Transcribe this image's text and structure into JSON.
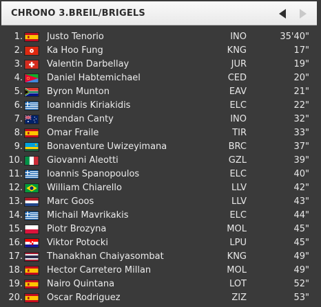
{
  "header": {
    "title": "CHRONO 3.BREIL/BRIGELS"
  },
  "results": [
    {
      "pos": "1.",
      "flag": "spain-flag-icon",
      "name": "Justo Tenorio",
      "team": "INO",
      "time": "35'40\""
    },
    {
      "pos": "2.",
      "flag": "hong-kong-flag-icon",
      "name": "Ka Hoo Fung",
      "team": "KNG",
      "time": "17\""
    },
    {
      "pos": "3.",
      "flag": "switzerland-flag-icon",
      "name": "Valentin Darbellay",
      "team": "JUR",
      "time": "19\""
    },
    {
      "pos": "4.",
      "flag": "eritrea-flag-icon",
      "name": "Daniel Habtemichael",
      "team": "CED",
      "time": "20\""
    },
    {
      "pos": "5.",
      "flag": "south-africa-flag-icon",
      "name": "Byron Munton",
      "team": "EAV",
      "time": "21\""
    },
    {
      "pos": "6.",
      "flag": "greece-flag-icon",
      "name": "Ioannidis Kiriakidis",
      "team": "ELC",
      "time": "22\""
    },
    {
      "pos": "7.",
      "flag": "australia-flag-icon",
      "name": "Brendan Canty",
      "team": "INO",
      "time": "32\""
    },
    {
      "pos": "8.",
      "flag": "spain-flag-icon",
      "name": "Omar Fraile",
      "team": "TIR",
      "time": "33\""
    },
    {
      "pos": "9.",
      "flag": "rwanda-flag-icon",
      "name": "Bonaventure Uwizeyimana",
      "team": "BRC",
      "time": "37\""
    },
    {
      "pos": "10.",
      "flag": "italy-flag-icon",
      "name": "Giovanni Aleotti",
      "team": "GZL",
      "time": "39\""
    },
    {
      "pos": "11.",
      "flag": "greece-flag-icon",
      "name": "Ioannis Spanopoulos",
      "team": "ELC",
      "time": "40\""
    },
    {
      "pos": "12.",
      "flag": "brazil-flag-icon",
      "name": "William Chiarello",
      "team": "LLV",
      "time": "42\""
    },
    {
      "pos": "13.",
      "flag": "netherlands-flag-icon",
      "name": "Marc Goos",
      "team": "LLV",
      "time": "43\""
    },
    {
      "pos": "14.",
      "flag": "greece-flag-icon",
      "name": "Michail Mavrikakis",
      "team": "ELC",
      "time": "44\""
    },
    {
      "pos": "15.",
      "flag": "poland-flag-icon",
      "name": "Piotr Brozyna",
      "team": "MOL",
      "time": "45\""
    },
    {
      "pos": "16.",
      "flag": "croatia-flag-icon",
      "name": "Viktor Potocki",
      "team": "LPU",
      "time": "45\""
    },
    {
      "pos": "17.",
      "flag": "thailand-flag-icon",
      "name": "Thanakhan Chaiyasombat",
      "team": "KNG",
      "time": "49\""
    },
    {
      "pos": "18.",
      "flag": "spain-flag-icon",
      "name": "Hector Carretero Millan",
      "team": "MOL",
      "time": "49\""
    },
    {
      "pos": "19.",
      "flag": "spain-flag-icon",
      "name": "Nairo Quintana",
      "team": "LOT",
      "time": "52\""
    },
    {
      "pos": "20.",
      "flag": "spain-flag-icon",
      "name": "Oscar Rodriguez",
      "team": "ZIZ",
      "time": "53\""
    }
  ]
}
